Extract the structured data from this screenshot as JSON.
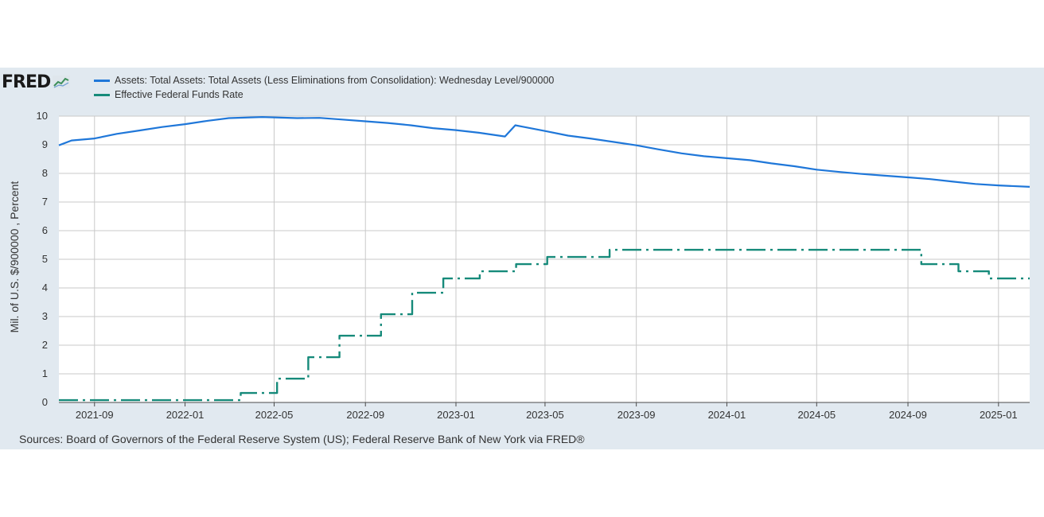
{
  "logo": {
    "text": "FRED",
    "icon": "trend-chart-icon"
  },
  "source": "Sources: Board of Governors of the Federal Reserve System (US); Federal Reserve Bank of New York via FRED®",
  "colors": {
    "background": "#e1e9f0",
    "plot": "#ffffff",
    "grid": "#c9c9c9",
    "assets": "#1f77d9",
    "effr": "#168a7a"
  },
  "chart_data": {
    "type": "line",
    "title": "",
    "xlabel": "",
    "ylabel": "Mil. of U.S. $/900000 , Percent",
    "xlim": [
      "2021-07-15",
      "2025-02-12"
    ],
    "ylim": [
      0,
      10
    ],
    "y_ticks": [
      0,
      1,
      2,
      3,
      4,
      5,
      6,
      7,
      8,
      9,
      10
    ],
    "x_ticks": [
      "2021-09",
      "2022-01",
      "2022-05",
      "2022-09",
      "2023-01",
      "2023-05",
      "2023-09",
      "2024-01",
      "2024-05",
      "2024-09",
      "2025-01"
    ],
    "grid": true,
    "legend_position": "top-left",
    "series": [
      {
        "name": "Assets: Total Assets: Total Assets (Less Eliminations from Consolidation): Wednesday Level/900000",
        "style": "solid",
        "color": "#1f77d9",
        "points": [
          [
            "2021-07-15",
            8.98
          ],
          [
            "2021-08-01",
            9.15
          ],
          [
            "2021-09-01",
            9.22
          ],
          [
            "2021-10-01",
            9.38
          ],
          [
            "2021-11-01",
            9.5
          ],
          [
            "2021-12-01",
            9.62
          ],
          [
            "2022-01-01",
            9.72
          ],
          [
            "2022-02-01",
            9.84
          ],
          [
            "2022-03-01",
            9.93
          ],
          [
            "2022-04-15",
            9.97
          ],
          [
            "2022-06-01",
            9.93
          ],
          [
            "2022-07-01",
            9.94
          ],
          [
            "2022-08-01",
            9.88
          ],
          [
            "2022-09-01",
            9.82
          ],
          [
            "2022-10-01",
            9.76
          ],
          [
            "2022-11-01",
            9.68
          ],
          [
            "2022-12-01",
            9.58
          ],
          [
            "2023-01-01",
            9.51
          ],
          [
            "2023-02-01",
            9.42
          ],
          [
            "2023-03-08",
            9.29
          ],
          [
            "2023-03-22",
            9.68
          ],
          [
            "2023-04-01",
            9.63
          ],
          [
            "2023-05-01",
            9.48
          ],
          [
            "2023-06-01",
            9.32
          ],
          [
            "2023-07-01",
            9.22
          ],
          [
            "2023-08-01",
            9.1
          ],
          [
            "2023-09-01",
            8.98
          ],
          [
            "2023-10-01",
            8.84
          ],
          [
            "2023-11-01",
            8.7
          ],
          [
            "2023-12-01",
            8.6
          ],
          [
            "2024-01-01",
            8.53
          ],
          [
            "2024-02-01",
            8.46
          ],
          [
            "2024-03-01",
            8.35
          ],
          [
            "2024-04-01",
            8.25
          ],
          [
            "2024-05-01",
            8.13
          ],
          [
            "2024-06-01",
            8.05
          ],
          [
            "2024-07-01",
            7.98
          ],
          [
            "2024-08-01",
            7.92
          ],
          [
            "2024-09-01",
            7.86
          ],
          [
            "2024-10-01",
            7.8
          ],
          [
            "2024-11-01",
            7.71
          ],
          [
            "2024-12-01",
            7.63
          ],
          [
            "2025-01-01",
            7.58
          ],
          [
            "2025-02-12",
            7.53
          ]
        ]
      },
      {
        "name": "Effective Federal Funds Rate",
        "style": "dash-dot",
        "color": "#168a7a",
        "points": [
          [
            "2021-07-15",
            0.08
          ],
          [
            "2022-03-17",
            0.08
          ],
          [
            "2022-03-17",
            0.33
          ],
          [
            "2022-05-05",
            0.33
          ],
          [
            "2022-05-05",
            0.83
          ],
          [
            "2022-06-16",
            0.83
          ],
          [
            "2022-06-16",
            1.58
          ],
          [
            "2022-07-28",
            1.58
          ],
          [
            "2022-07-28",
            2.33
          ],
          [
            "2022-09-22",
            2.33
          ],
          [
            "2022-09-22",
            3.08
          ],
          [
            "2022-11-03",
            3.08
          ],
          [
            "2022-11-03",
            3.83
          ],
          [
            "2022-12-15",
            3.83
          ],
          [
            "2022-12-15",
            4.33
          ],
          [
            "2023-02-02",
            4.33
          ],
          [
            "2023-02-02",
            4.58
          ],
          [
            "2023-03-23",
            4.58
          ],
          [
            "2023-03-23",
            4.83
          ],
          [
            "2023-05-04",
            4.83
          ],
          [
            "2023-05-04",
            5.08
          ],
          [
            "2023-07-27",
            5.08
          ],
          [
            "2023-07-27",
            5.33
          ],
          [
            "2024-09-19",
            5.33
          ],
          [
            "2024-09-19",
            4.83
          ],
          [
            "2024-11-08",
            4.83
          ],
          [
            "2024-11-08",
            4.58
          ],
          [
            "2024-12-19",
            4.58
          ],
          [
            "2024-12-19",
            4.33
          ],
          [
            "2025-02-12",
            4.33
          ]
        ]
      }
    ]
  }
}
